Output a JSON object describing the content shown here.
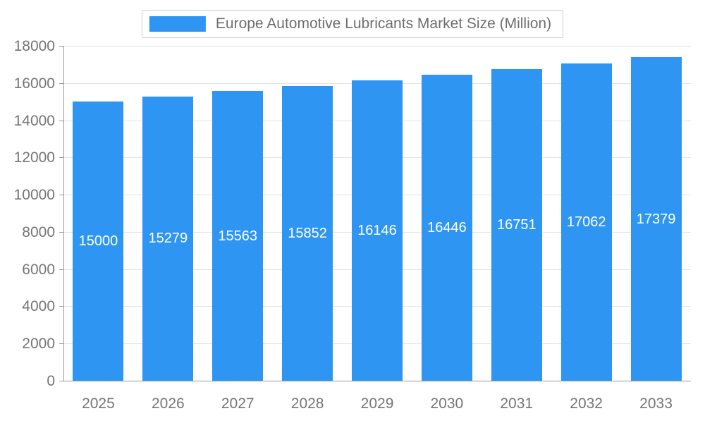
{
  "chart_data": {
    "type": "bar",
    "title": "Europe Automotive Lubricants Market Size (Million)",
    "categories": [
      "2025",
      "2026",
      "2027",
      "2028",
      "2029",
      "2030",
      "2031",
      "2032",
      "2033"
    ],
    "values": [
      15000,
      15279,
      15563,
      15852,
      16146,
      16446,
      16751,
      17062,
      17379
    ],
    "series": [
      {
        "name": "Europe Automotive Lubricants Market Size (Million)",
        "values": [
          15000,
          15279,
          15563,
          15852,
          16146,
          16446,
          16751,
          17062,
          17379
        ]
      }
    ],
    "xlabel": "",
    "ylabel": "",
    "ylim": [
      0,
      18000
    ],
    "yticks": [
      0,
      2000,
      4000,
      6000,
      8000,
      10000,
      12000,
      14000,
      16000,
      18000
    ],
    "grid": true,
    "legend_position": "top-center",
    "data_labels": "inside-bar-white",
    "colors": {
      "bar": "#2E96F2",
      "bar_label": "#ffffff",
      "axis_text": "#757575",
      "gridline": "#e3e3e3",
      "axis_line": "#9a9a9a",
      "legend_border": "#cfcfcf",
      "legend_text": "#6e6e6e"
    }
  }
}
